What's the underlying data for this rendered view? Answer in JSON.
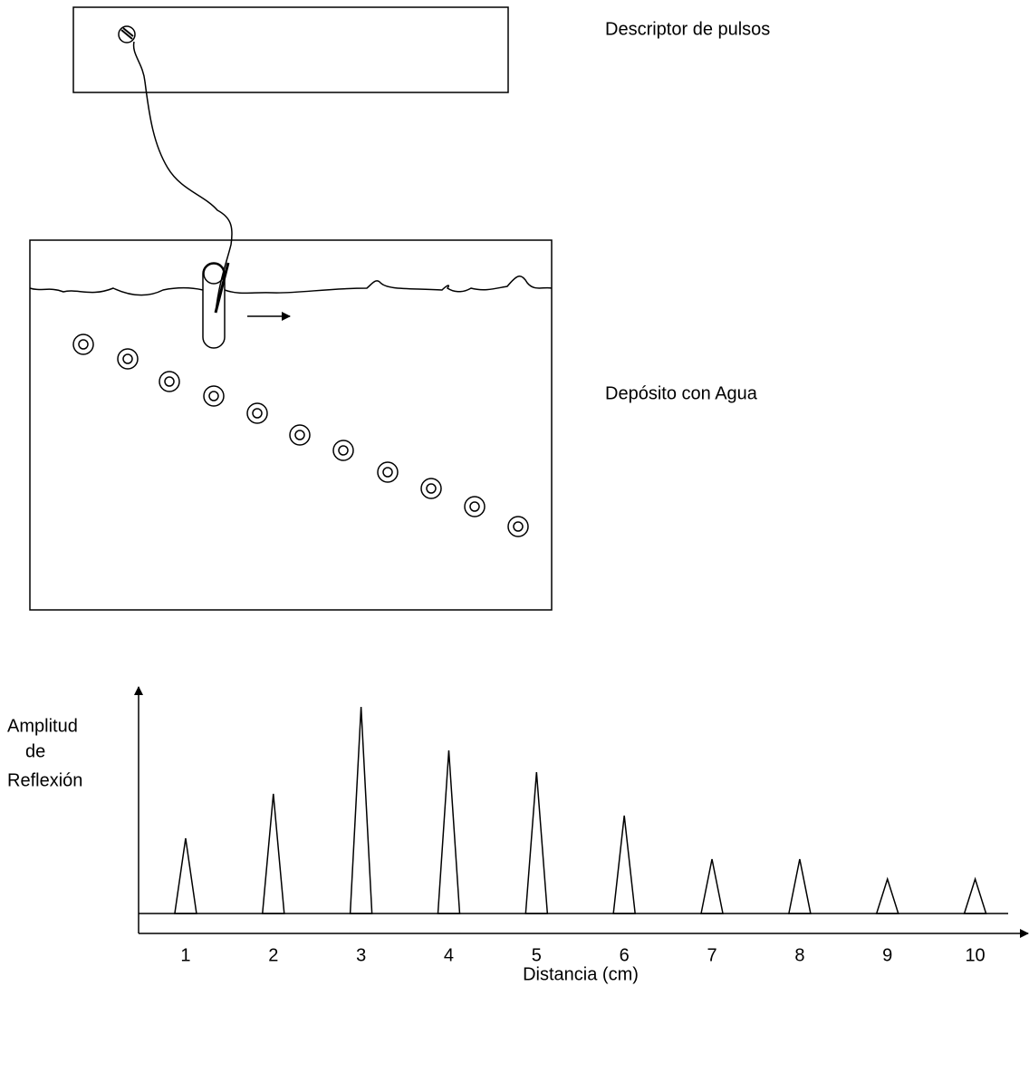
{
  "labels": {
    "pulse_device": "Descriptor de pulsos",
    "tank": "Depósito con Agua"
  },
  "chart_data": {
    "type": "spike",
    "y_label_lines": [
      "Amplitud",
      "de",
      "Reflexión"
    ],
    "x_label": "Distancia (cm)",
    "x": [
      1,
      2,
      3,
      4,
      5,
      6,
      7,
      8,
      9,
      10
    ],
    "values": [
      83,
      132,
      228,
      180,
      156,
      108,
      60,
      60,
      38,
      38
    ],
    "xlim": [
      0.5,
      10.5
    ],
    "ylim": [
      0,
      250
    ],
    "color": "#000000"
  }
}
